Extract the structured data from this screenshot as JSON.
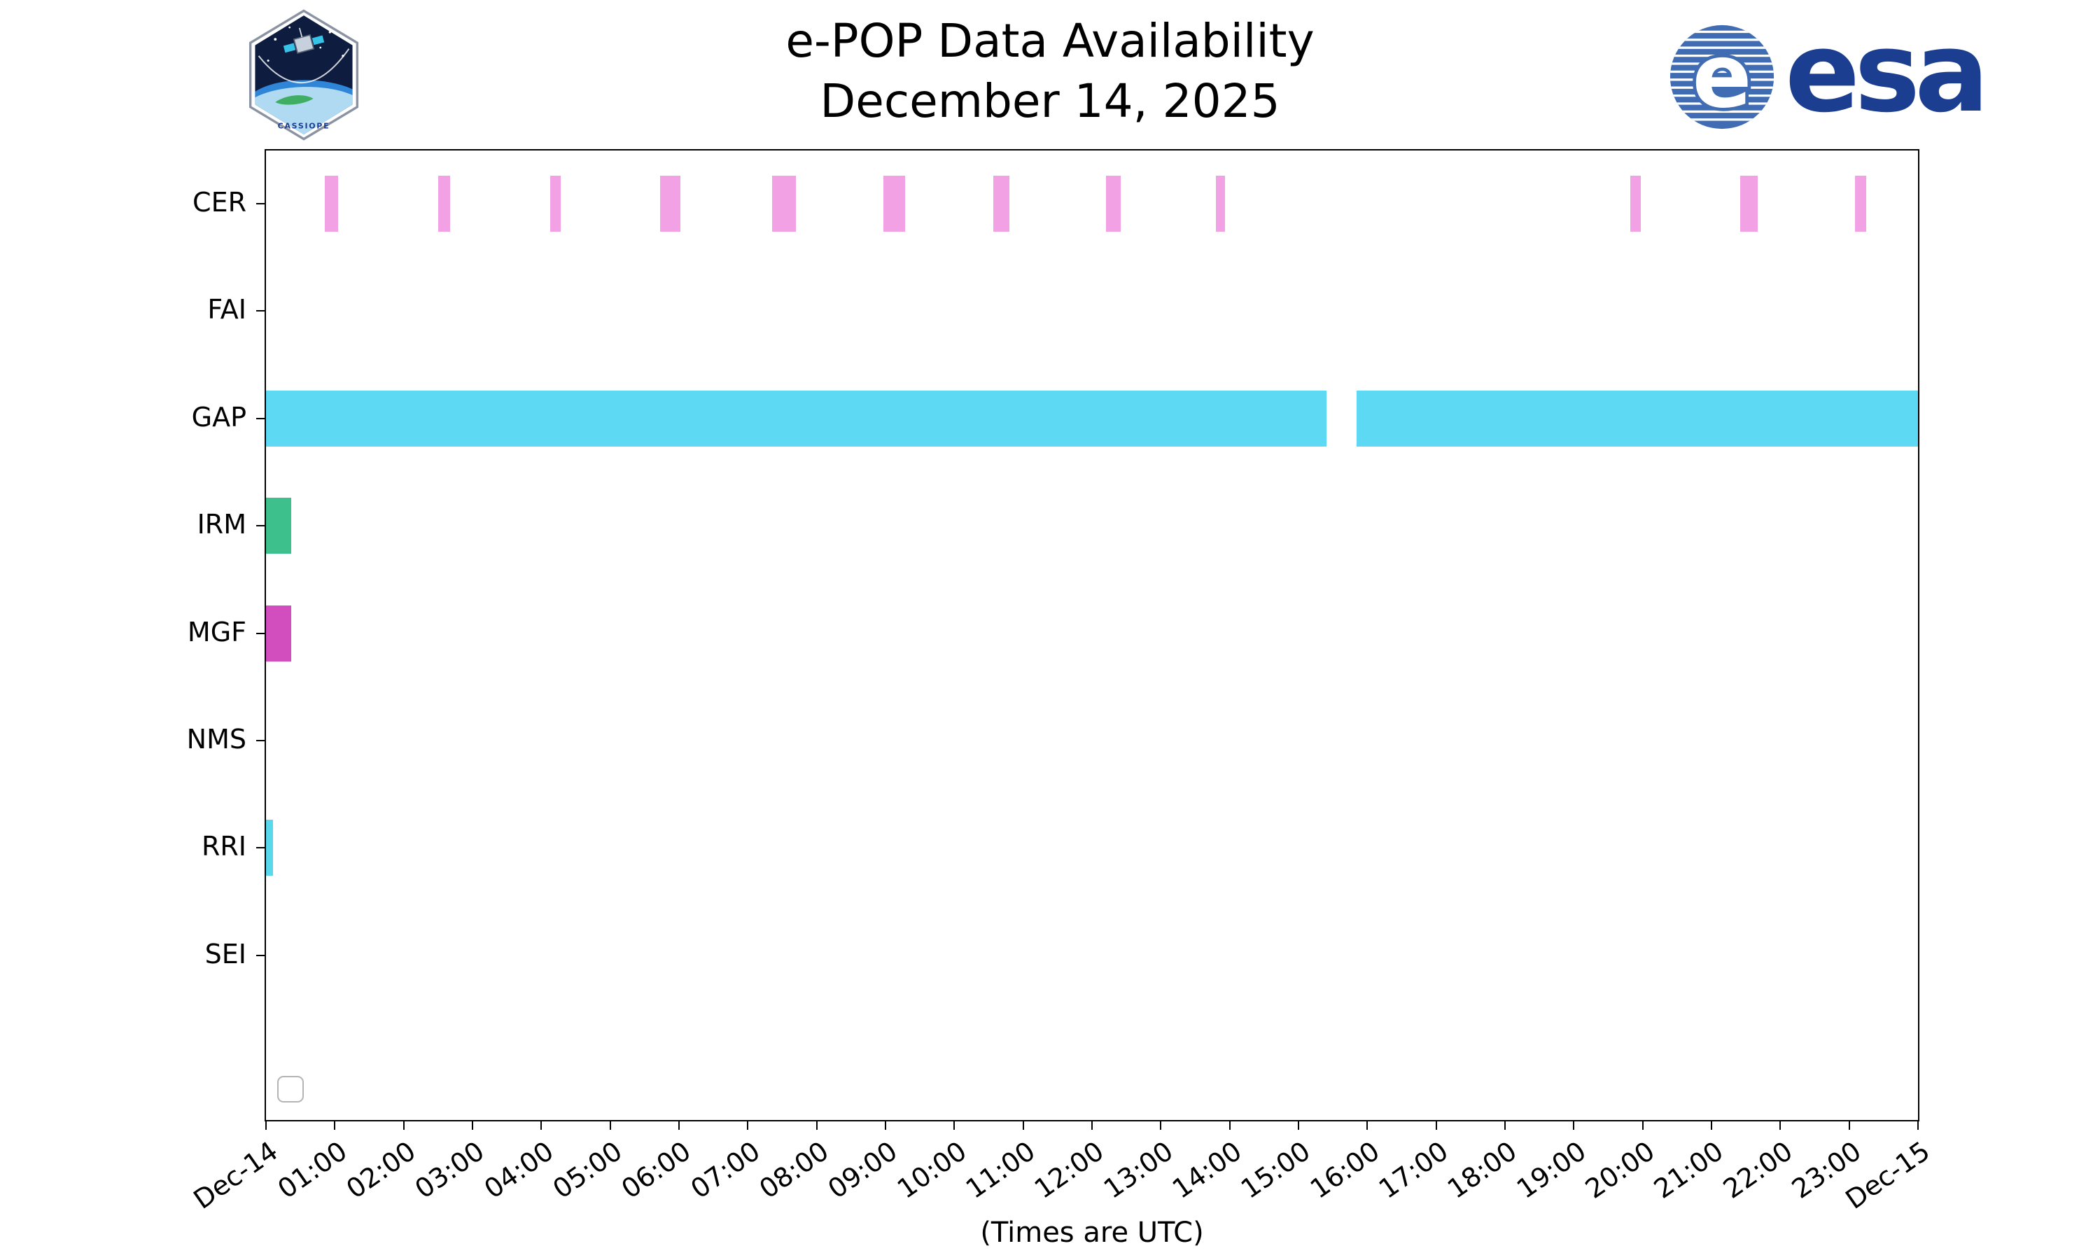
{
  "header": {
    "cassiope_label": "CASSIOPE",
    "esa_wordmark": "esa"
  },
  "chart_data": {
    "type": "timeline",
    "title": "e-POP Data Availability",
    "subtitle": "December 14, 2025",
    "xlabel": "(Times are UTC)",
    "hours": 24,
    "grid": false,
    "x_tick_labels": [
      "Dec-14",
      "01:00",
      "02:00",
      "03:00",
      "04:00",
      "05:00",
      "06:00",
      "07:00",
      "08:00",
      "09:00",
      "10:00",
      "11:00",
      "12:00",
      "13:00",
      "14:00",
      "15:00",
      "16:00",
      "17:00",
      "18:00",
      "19:00",
      "20:00",
      "21:00",
      "22:00",
      "23:00",
      "Dec-15"
    ],
    "rows": [
      {
        "label": "CER",
        "color": "#f2a2e4",
        "intervals": [
          [
            0.85,
            1.05
          ],
          [
            2.5,
            2.67
          ],
          [
            4.13,
            4.28
          ],
          [
            5.73,
            6.02
          ],
          [
            7.35,
            7.7
          ],
          [
            8.97,
            9.28
          ],
          [
            10.57,
            10.8
          ],
          [
            12.2,
            12.42
          ],
          [
            13.8,
            13.93
          ],
          [
            19.82,
            19.97
          ],
          [
            21.42,
            21.67
          ],
          [
            23.08,
            23.25
          ]
        ]
      },
      {
        "label": "FAI",
        "color": "#f2a2e4",
        "intervals": []
      },
      {
        "label": "GAP",
        "color": "#5dd9f3",
        "intervals": [
          [
            0.0,
            15.41
          ],
          [
            15.84,
            24.0
          ]
        ]
      },
      {
        "label": "IRM",
        "color": "#3ec08d",
        "intervals": [
          [
            0.0,
            0.37
          ]
        ]
      },
      {
        "label": "MGF",
        "color": "#d24dbe",
        "intervals": [
          [
            0.0,
            0.37
          ]
        ]
      },
      {
        "label": "NMS",
        "color": "#bbbbbb",
        "intervals": []
      },
      {
        "label": "RRI",
        "color": "#58d8ea",
        "intervals": [
          [
            0.0,
            0.1
          ]
        ]
      },
      {
        "label": "SEI",
        "color": "#bbbbbb",
        "intervals": []
      }
    ],
    "legend": {
      "visible": true,
      "entries": []
    }
  }
}
